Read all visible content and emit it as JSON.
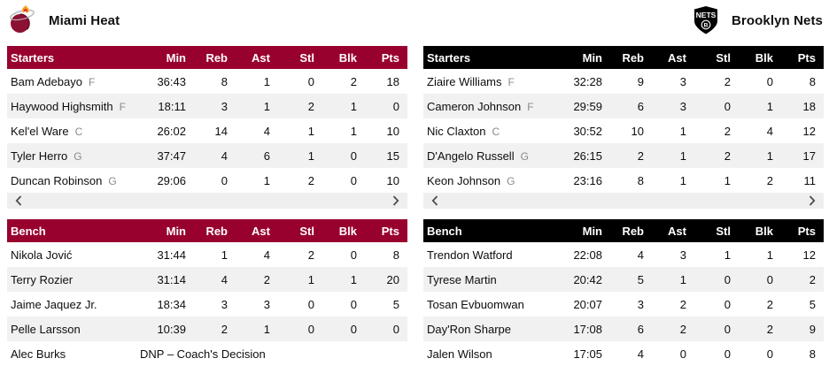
{
  "colors": {
    "heat_header": "#98012E",
    "nets_header": "#000000",
    "row_alt": "#F1F1F1",
    "scrollbar_bg": "#EFEFEF",
    "chevron": "#4D4D4D",
    "position_gray": "#8A8A8A"
  },
  "icons": {
    "heat_logo": "miami-heat-flaming-ball-logo",
    "nets_logo": "brooklyn-nets-shield-logo",
    "scroll_left": "chevron-left",
    "scroll_right": "chevron-right"
  },
  "columns": [
    "Min",
    "Reb",
    "Ast",
    "Stl",
    "Blk",
    "Pts"
  ],
  "teams": [
    {
      "name": "Miami Heat",
      "starters": {
        "label": "Starters",
        "rows": [
          {
            "name": "Bam Adebayo",
            "pos": "F",
            "stats": [
              "36:43",
              "8",
              "1",
              "0",
              "2",
              "18"
            ]
          },
          {
            "name": "Haywood Highsmith",
            "pos": "F",
            "stats": [
              "18:11",
              "3",
              "1",
              "2",
              "1",
              "0"
            ]
          },
          {
            "name": "Kel'el Ware",
            "pos": "C",
            "stats": [
              "26:02",
              "14",
              "4",
              "1",
              "1",
              "10"
            ]
          },
          {
            "name": "Tyler Herro",
            "pos": "G",
            "stats": [
              "37:47",
              "4",
              "6",
              "1",
              "0",
              "15"
            ]
          },
          {
            "name": "Duncan Robinson",
            "pos": "G",
            "stats": [
              "29:06",
              "0",
              "1",
              "2",
              "0",
              "10"
            ]
          }
        ]
      },
      "bench": {
        "label": "Bench",
        "rows": [
          {
            "name": "Nikola Jović",
            "stats": [
              "31:44",
              "1",
              "4",
              "2",
              "0",
              "8"
            ]
          },
          {
            "name": "Terry Rozier",
            "stats": [
              "31:14",
              "4",
              "2",
              "1",
              "1",
              "20"
            ]
          },
          {
            "name": "Jaime Jaquez Jr.",
            "stats": [
              "18:34",
              "3",
              "3",
              "0",
              "0",
              "5"
            ]
          },
          {
            "name": "Pelle Larsson",
            "stats": [
              "10:39",
              "2",
              "1",
              "0",
              "0",
              "0"
            ]
          },
          {
            "name": "Alec Burks",
            "dnp": "DNP – Coach's Decision"
          }
        ]
      }
    },
    {
      "name": "Brooklyn Nets",
      "starters": {
        "label": "Starters",
        "rows": [
          {
            "name": "Ziaire Williams",
            "pos": "F",
            "stats": [
              "32:28",
              "9",
              "3",
              "2",
              "0",
              "8"
            ]
          },
          {
            "name": "Cameron Johnson",
            "pos": "F",
            "stats": [
              "29:59",
              "6",
              "3",
              "0",
              "1",
              "18"
            ]
          },
          {
            "name": "Nic Claxton",
            "pos": "C",
            "stats": [
              "30:52",
              "10",
              "1",
              "2",
              "4",
              "12"
            ]
          },
          {
            "name": "D'Angelo Russell",
            "pos": "G",
            "stats": [
              "26:15",
              "2",
              "1",
              "2",
              "1",
              "17"
            ]
          },
          {
            "name": "Keon Johnson",
            "pos": "G",
            "stats": [
              "23:16",
              "8",
              "1",
              "1",
              "2",
              "11"
            ]
          }
        ]
      },
      "bench": {
        "label": "Bench",
        "rows": [
          {
            "name": "Trendon Watford",
            "stats": [
              "22:08",
              "4",
              "3",
              "1",
              "1",
              "12"
            ]
          },
          {
            "name": "Tyrese Martin",
            "stats": [
              "20:42",
              "5",
              "1",
              "0",
              "0",
              "2"
            ]
          },
          {
            "name": "Tosan Evbuomwan",
            "stats": [
              "20:07",
              "3",
              "2",
              "0",
              "2",
              "5"
            ]
          },
          {
            "name": "Day'Ron Sharpe",
            "stats": [
              "17:08",
              "6",
              "2",
              "0",
              "2",
              "9"
            ]
          },
          {
            "name": "Jalen Wilson",
            "stats": [
              "17:05",
              "4",
              "0",
              "0",
              "0",
              "8"
            ]
          }
        ]
      }
    }
  ]
}
